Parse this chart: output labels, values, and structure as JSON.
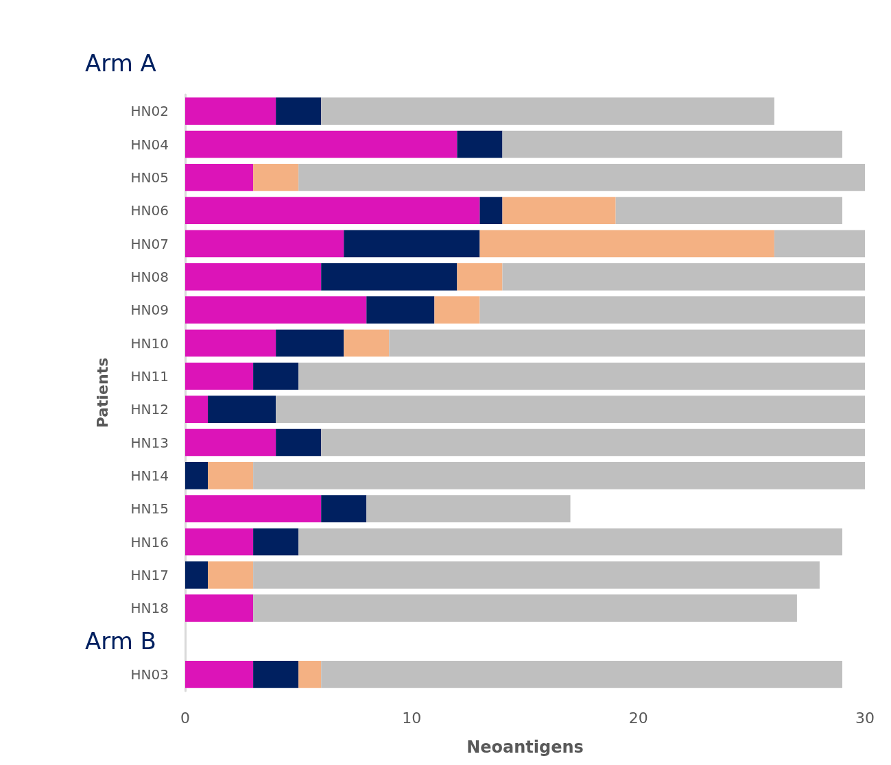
{
  "chart_data": {
    "type": "bar",
    "orientation": "horizontal",
    "stacked": true,
    "xlabel": "Neoantigens",
    "ylabel": "Patients",
    "annotations": [
      "Arm A",
      "Arm B"
    ],
    "categories": [
      "HN02",
      "HN04",
      "HN05",
      "HN06",
      "HN07",
      "HN08",
      "HN09",
      "HN10",
      "HN11",
      "HN12",
      "HN13",
      "HN14",
      "HN15",
      "HN16",
      "HN17",
      "HN18",
      null,
      "HN03"
    ],
    "series": [
      {
        "color": "#dc14b8",
        "values": [
          4,
          12,
          3,
          13,
          7,
          6,
          8,
          4,
          3,
          1,
          4,
          0,
          6,
          3,
          0,
          3,
          null,
          3
        ]
      },
      {
        "color": "#002060",
        "values": [
          2,
          2,
          0,
          1,
          6,
          6,
          3,
          3,
          2,
          3,
          2,
          1,
          2,
          2,
          1,
          0,
          null,
          2
        ]
      },
      {
        "color": "#f4b183",
        "values": [
          0,
          0,
          2,
          5,
          13,
          2,
          2,
          2,
          0,
          0,
          0,
          2,
          0,
          0,
          2,
          0,
          null,
          1
        ]
      },
      {
        "color": "#bfbfbf",
        "values": [
          20,
          15,
          25,
          10,
          4,
          16,
          17,
          21,
          25,
          26,
          24,
          27,
          9,
          24,
          25,
          24,
          null,
          23
        ]
      }
    ],
    "xlim": [
      0,
      30
    ],
    "xticks": [
      0,
      10,
      20,
      30
    ],
    "grid": false
  }
}
